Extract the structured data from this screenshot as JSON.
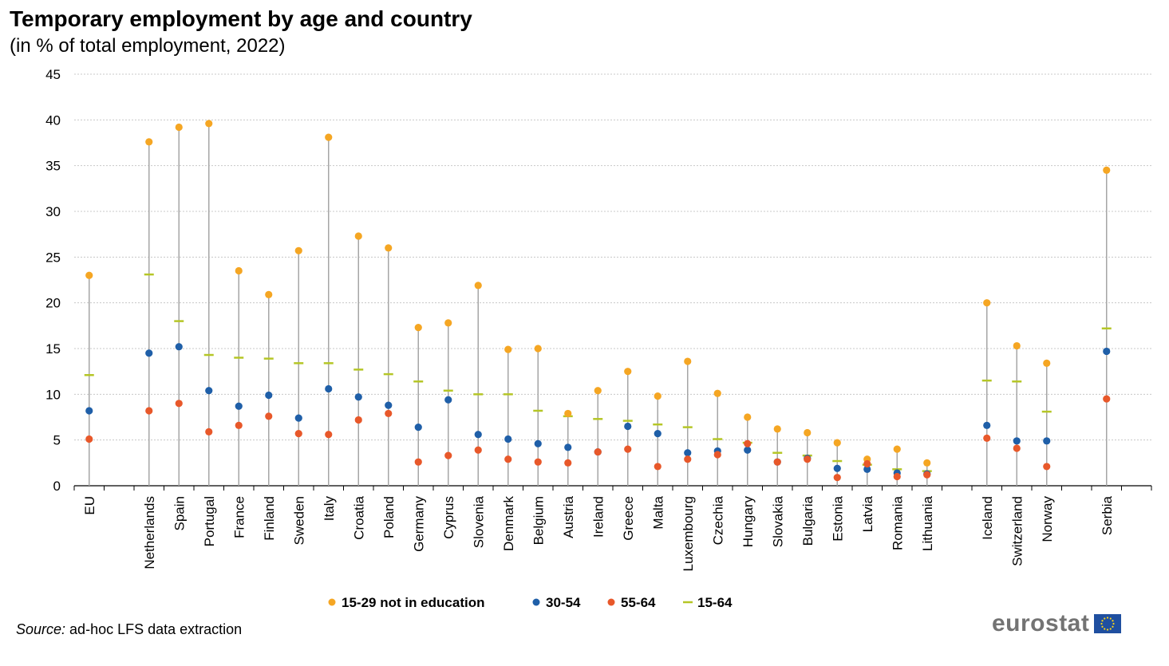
{
  "title": "Temporary employment by age and country",
  "subtitle": "(in % of total employment, 2022)",
  "source_label": "Source:",
  "source_text": " ad-hoc LFS data extraction",
  "logo_text": "eurostat",
  "logo_icon": "eu-flag-icon",
  "chart_data": {
    "type": "scatter",
    "ylim": [
      0,
      45
    ],
    "yticks": [
      0,
      5,
      10,
      15,
      20,
      25,
      30,
      35,
      40,
      45
    ],
    "grid": true,
    "legend_position": "bottom",
    "groups": [
      [
        "EU"
      ],
      [
        "Netherlands",
        "Spain",
        "Portugal",
        "France",
        "Finland",
        "Sweden",
        "Italy",
        "Croatia",
        "Poland",
        "Germany",
        "Cyprus",
        "Slovenia",
        "Denmark",
        "Belgium",
        "Austria",
        "Ireland",
        "Greece",
        "Malta",
        "Luxembourg",
        "Czechia",
        "Hungary",
        "Slovakia",
        "Bulgaria",
        "Estonia",
        "Latvia",
        "Romania",
        "Lithuania"
      ],
      [
        "Iceland",
        "Switzerland",
        "Norway"
      ],
      [
        "Serbia"
      ]
    ],
    "categories": [
      "EU",
      "Netherlands",
      "Spain",
      "Portugal",
      "France",
      "Finland",
      "Sweden",
      "Italy",
      "Croatia",
      "Poland",
      "Germany",
      "Cyprus",
      "Slovenia",
      "Denmark",
      "Belgium",
      "Austria",
      "Ireland",
      "Greece",
      "Malta",
      "Luxembourg",
      "Czechia",
      "Hungary",
      "Slovakia",
      "Bulgaria",
      "Estonia",
      "Latvia",
      "Romania",
      "Lithuania",
      "Iceland",
      "Switzerland",
      "Norway",
      "Serbia"
    ],
    "series": [
      {
        "name": "15-29 not in education",
        "marker": "dot",
        "color": "#f5a623",
        "values": [
          23.0,
          37.6,
          39.2,
          39.6,
          23.5,
          20.9,
          25.7,
          38.1,
          27.3,
          26.0,
          17.3,
          17.8,
          21.9,
          14.9,
          15.0,
          7.9,
          10.4,
          12.5,
          9.8,
          13.6,
          10.1,
          7.5,
          6.2,
          5.8,
          4.7,
          2.9,
          4.0,
          2.5,
          20.0,
          15.3,
          13.4,
          34.5
        ]
      },
      {
        "name": "30-54",
        "marker": "dot",
        "color": "#1f5fa8",
        "values": [
          8.2,
          14.5,
          15.2,
          10.4,
          8.7,
          9.9,
          7.4,
          10.6,
          9.7,
          8.8,
          6.4,
          9.4,
          5.6,
          5.1,
          4.6,
          4.2,
          3.7,
          6.5,
          5.7,
          3.6,
          3.8,
          3.9,
          2.6,
          3.0,
          1.9,
          1.8,
          1.4,
          1.3,
          6.6,
          4.9,
          4.9,
          14.7
        ]
      },
      {
        "name": "55-64",
        "marker": "dot",
        "color": "#e8582a",
        "values": [
          5.1,
          8.2,
          9.0,
          5.9,
          6.6,
          7.6,
          5.7,
          5.6,
          7.2,
          7.9,
          2.6,
          3.3,
          3.9,
          2.9,
          2.6,
          2.5,
          3.7,
          4.0,
          2.1,
          2.9,
          3.4,
          4.6,
          2.6,
          2.9,
          0.9,
          2.4,
          1.0,
          1.2,
          5.2,
          4.1,
          2.1,
          9.5
        ]
      },
      {
        "name": "15-64",
        "marker": "dash",
        "color": "#b5c626",
        "values": [
          12.1,
          23.1,
          18.0,
          14.3,
          14.0,
          13.9,
          13.4,
          13.4,
          12.7,
          12.2,
          11.4,
          10.4,
          10.0,
          10.0,
          8.2,
          7.6,
          7.3,
          7.1,
          6.7,
          6.4,
          5.1,
          4.7,
          3.6,
          3.3,
          2.7,
          2.3,
          1.8,
          1.6,
          11.5,
          11.4,
          8.1,
          17.2
        ]
      }
    ]
  }
}
